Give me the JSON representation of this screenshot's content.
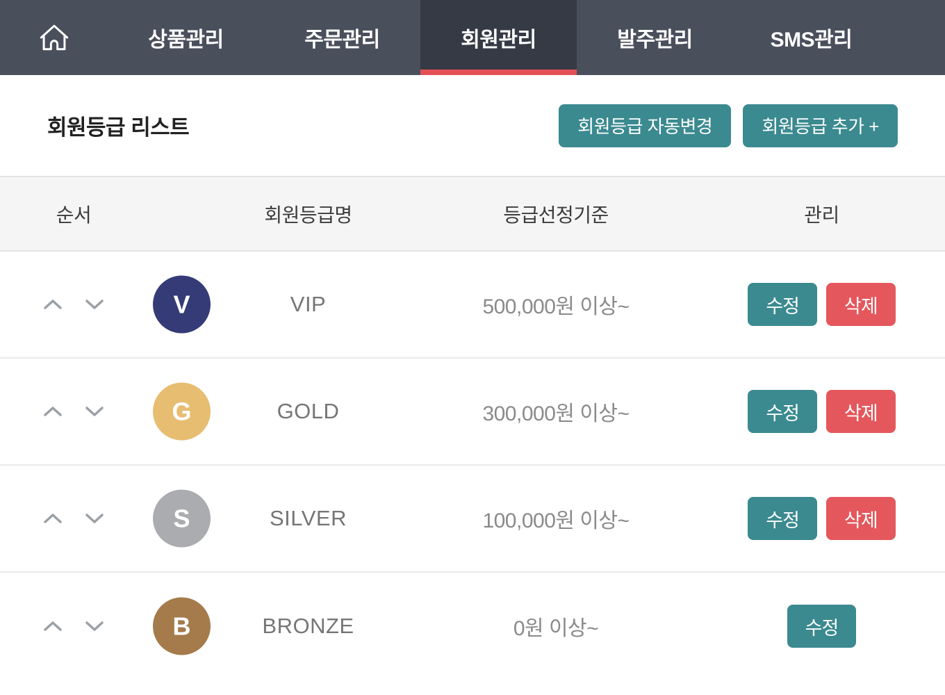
{
  "nav": {
    "tabs": [
      {
        "label": "상품관리",
        "active": false
      },
      {
        "label": "주문관리",
        "active": false
      },
      {
        "label": "회원관리",
        "active": true
      },
      {
        "label": "발주관리",
        "active": false
      },
      {
        "label": "SMS관리",
        "active": false
      }
    ]
  },
  "header": {
    "title": "회원등급 리스트",
    "buttons": [
      {
        "label": "회원등급 자동변경"
      },
      {
        "label": "회원등급 추가 +"
      }
    ]
  },
  "table": {
    "columns": [
      "순서",
      "회원등급명",
      "등급선정기준",
      "관리"
    ],
    "action_labels": {
      "edit": "수정",
      "delete": "삭제"
    },
    "rows": [
      {
        "initial": "V",
        "avatar_color": "#353b76",
        "name": "VIP",
        "criteria": "500,000원 이상~",
        "actions": [
          "edit",
          "delete"
        ]
      },
      {
        "initial": "G",
        "avatar_color": "#e7bd71",
        "name": "GOLD",
        "criteria": "300,000원 이상~",
        "actions": [
          "edit",
          "delete"
        ]
      },
      {
        "initial": "S",
        "avatar_color": "#aaacaf",
        "name": "SILVER",
        "criteria": "100,000원 이상~",
        "actions": [
          "edit",
          "delete"
        ]
      },
      {
        "initial": "B",
        "avatar_color": "#a57b4b",
        "name": "BRONZE",
        "criteria": "0원 이상~",
        "actions": [
          "edit"
        ]
      }
    ]
  },
  "colors": {
    "nav_bg": "#4a4f5c",
    "nav_active_bg": "#353a44",
    "accent_red": "#e25055",
    "teal": "#3b8a90",
    "danger_red": "#e4575c"
  }
}
